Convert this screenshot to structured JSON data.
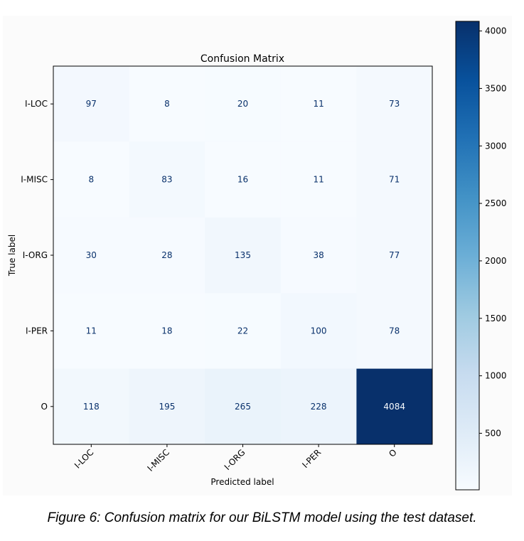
{
  "chart_data": {
    "type": "heatmap",
    "title": "Confusion Matrix",
    "xlabel": "Predicted label",
    "ylabel": "True label",
    "x_categories": [
      "I-LOC",
      "I-MISC",
      "I-ORG",
      "I-PER",
      "O"
    ],
    "y_categories": [
      "I-LOC",
      "I-MISC",
      "I-ORG",
      "I-PER",
      "O"
    ],
    "values": [
      [
        97,
        8,
        20,
        11,
        73
      ],
      [
        8,
        83,
        16,
        11,
        71
      ],
      [
        30,
        28,
        135,
        38,
        77
      ],
      [
        11,
        18,
        22,
        100,
        78
      ],
      [
        118,
        195,
        265,
        228,
        4084
      ]
    ],
    "colormap": "Blues",
    "colorbar_ticks": [
      4000,
      3500,
      3000,
      2500,
      2000,
      1500,
      1000,
      500
    ],
    "colorbar_range": [
      8,
      4084
    ]
  },
  "caption": "Figure 6: Confusion matrix for our BiLSTM model using the test dataset."
}
